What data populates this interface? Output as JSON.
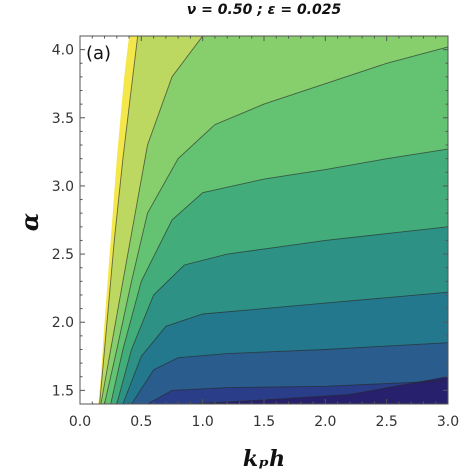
{
  "chart_data": {
    "type": "contour",
    "title": "ν = 0.50 ; ε = 0.025",
    "panel_label": "(a)",
    "xlabel": "kₚh",
    "ylabel": "α",
    "xlim": [
      0.0,
      3.0
    ],
    "ylim": [
      1.4,
      4.1
    ],
    "xticks": [
      "0.0",
      "0.5",
      "1.0",
      "1.5",
      "2.0",
      "2.5",
      "3.0"
    ],
    "yticks": [
      "1.5",
      "2.0",
      "2.5",
      "3.0",
      "3.5",
      "4.0"
    ],
    "contour_boundaries": [
      {
        "name": "b0",
        "points": [
          [
            0.15,
            1.4
          ],
          [
            0.17,
            1.6
          ],
          [
            0.2,
            2.0
          ],
          [
            0.25,
            2.6
          ],
          [
            0.3,
            3.2
          ],
          [
            0.36,
            3.8
          ],
          [
            0.4,
            4.1
          ]
        ]
      },
      {
        "name": "b1",
        "points": [
          [
            0.16,
            1.4
          ],
          [
            0.22,
            2.0
          ],
          [
            0.28,
            2.6
          ],
          [
            0.35,
            3.2
          ],
          [
            0.43,
            3.8
          ],
          [
            0.47,
            4.1
          ]
        ]
      },
      {
        "name": "b2",
        "points": [
          [
            0.17,
            1.4
          ],
          [
            0.25,
            1.8
          ],
          [
            0.35,
            2.3
          ],
          [
            0.45,
            2.8
          ],
          [
            0.55,
            3.3
          ],
          [
            0.75,
            3.8
          ],
          [
            1.0,
            4.1
          ]
        ]
      },
      {
        "name": "b3",
        "points": [
          [
            0.2,
            1.4
          ],
          [
            0.3,
            1.8
          ],
          [
            0.42,
            2.3
          ],
          [
            0.55,
            2.8
          ],
          [
            0.8,
            3.2
          ],
          [
            1.1,
            3.45
          ],
          [
            1.5,
            3.6
          ],
          [
            2.0,
            3.75
          ],
          [
            2.5,
            3.9
          ],
          [
            3.0,
            4.02
          ]
        ]
      },
      {
        "name": "b4",
        "points": [
          [
            0.25,
            1.4
          ],
          [
            0.35,
            1.8
          ],
          [
            0.5,
            2.3
          ],
          [
            0.75,
            2.75
          ],
          [
            1.0,
            2.95
          ],
          [
            1.5,
            3.05
          ],
          [
            2.0,
            3.12
          ],
          [
            2.5,
            3.2
          ],
          [
            3.0,
            3.27
          ]
        ]
      },
      {
        "name": "b5",
        "points": [
          [
            0.3,
            1.4
          ],
          [
            0.42,
            1.8
          ],
          [
            0.6,
            2.2
          ],
          [
            0.85,
            2.42
          ],
          [
            1.2,
            2.5
          ],
          [
            1.6,
            2.55
          ],
          [
            2.0,
            2.6
          ],
          [
            2.5,
            2.65
          ],
          [
            3.0,
            2.7
          ]
        ]
      },
      {
        "name": "b6",
        "points": [
          [
            0.35,
            1.4
          ],
          [
            0.5,
            1.75
          ],
          [
            0.7,
            1.97
          ],
          [
            1.0,
            2.06
          ],
          [
            1.5,
            2.1
          ],
          [
            2.0,
            2.14
          ],
          [
            2.5,
            2.18
          ],
          [
            3.0,
            2.22
          ]
        ]
      },
      {
        "name": "b7",
        "points": [
          [
            0.42,
            1.4
          ],
          [
            0.6,
            1.65
          ],
          [
            0.8,
            1.74
          ],
          [
            1.2,
            1.77
          ],
          [
            2.0,
            1.8
          ],
          [
            3.0,
            1.85
          ]
        ]
      },
      {
        "name": "b8",
        "points": [
          [
            0.55,
            1.4
          ],
          [
            0.75,
            1.5
          ],
          [
            1.2,
            1.52
          ],
          [
            2.0,
            1.53
          ],
          [
            3.0,
            1.57
          ]
        ]
      },
      {
        "name": "b9",
        "points": [
          [
            0.9,
            1.4
          ],
          [
            1.5,
            1.43
          ],
          [
            2.2,
            1.47
          ],
          [
            3.0,
            1.6
          ]
        ]
      }
    ],
    "region_colors": [
      "#ffffff",
      "#f3e74b",
      "#bcd860",
      "#86cf6c",
      "#63c372",
      "#42ad7b",
      "#2e9185",
      "#24788d",
      "#2a5c8d",
      "#2a3d88",
      "#27216d"
    ]
  }
}
